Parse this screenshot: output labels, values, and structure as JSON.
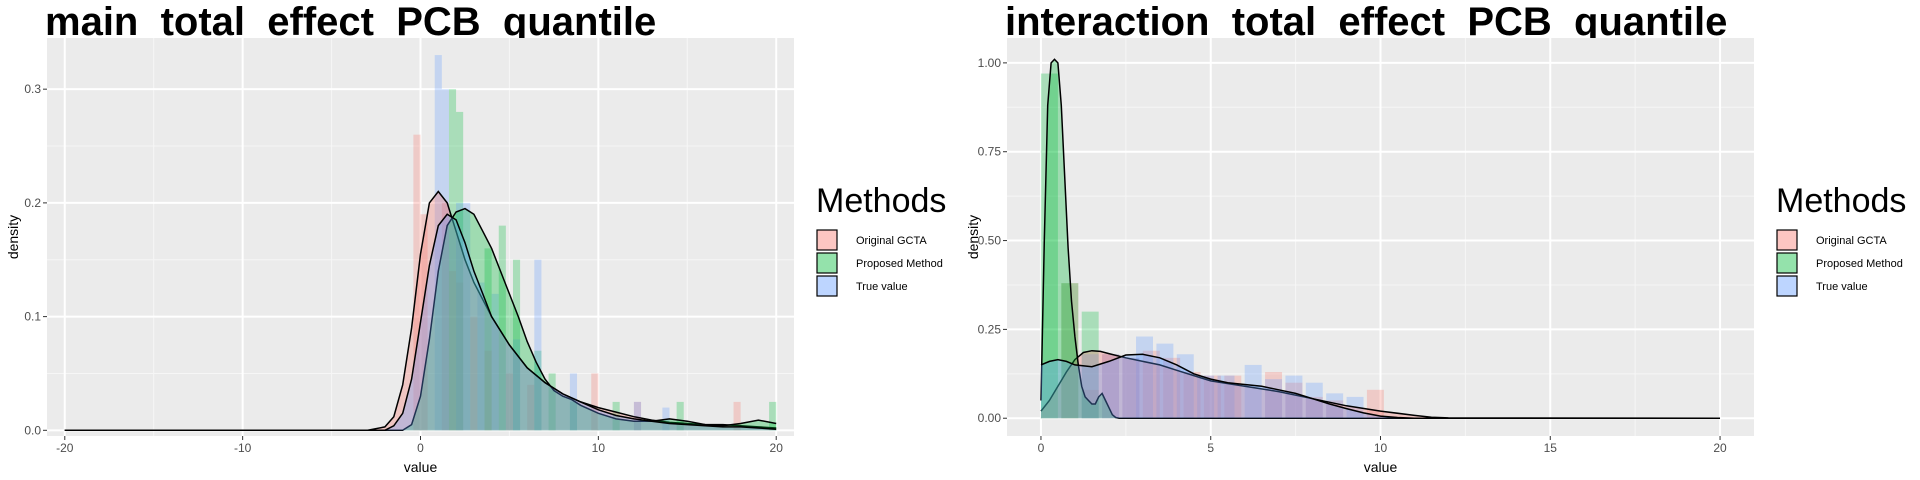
{
  "chart_data": [
    {
      "type": "histogram-density",
      "title": "main_total_effect_PCB_quantile",
      "xlabel": "value",
      "ylabel": "density",
      "xlim": [
        -21,
        21
      ],
      "ylim": [
        -0.005,
        0.345
      ],
      "xticks": [
        -20,
        -10,
        0,
        10,
        20
      ],
      "xtick_labels": [
        "-20",
        "-10",
        "0",
        "10",
        "20"
      ],
      "yticks": [
        0,
        0.1,
        0.2,
        0.3
      ],
      "ytick_labels": [
        "0.0",
        "0.1",
        "0.2",
        "0.3"
      ],
      "grid": true,
      "legend": {
        "title": "Methods",
        "position": "right"
      },
      "series": [
        {
          "name": "Original GCTA",
          "color": "#F8766D",
          "bins": [
            [
              -0.4,
              0.26
            ],
            [
              0.0,
              0.19
            ],
            [
              1.2,
              0.2
            ],
            [
              1.6,
              0.14
            ],
            [
              2.0,
              0.13
            ],
            [
              2.8,
              0.1
            ],
            [
              3.6,
              0.07
            ],
            [
              4.8,
              0.05
            ],
            [
              6.0,
              0.04
            ],
            [
              9.6,
              0.05
            ],
            [
              12.0,
              0.025
            ],
            [
              17.6,
              0.025
            ]
          ],
          "binwidth": 0.4,
          "curve": [
            [
              -20,
              0
            ],
            [
              -3,
              0
            ],
            [
              -2,
              0.003
            ],
            [
              -1.5,
              0.012
            ],
            [
              -1,
              0.04
            ],
            [
              -0.5,
              0.09
            ],
            [
              0,
              0.155
            ],
            [
              0.5,
              0.2
            ],
            [
              1,
              0.21
            ],
            [
              1.5,
              0.2
            ],
            [
              2,
              0.175
            ],
            [
              2.5,
              0.15
            ],
            [
              3,
              0.13
            ],
            [
              4,
              0.1
            ],
            [
              5,
              0.075
            ],
            [
              6,
              0.055
            ],
            [
              7,
              0.042
            ],
            [
              8,
              0.032
            ],
            [
              9,
              0.025
            ],
            [
              10,
              0.02
            ],
            [
              11,
              0.016
            ],
            [
              12,
              0.012
            ],
            [
              13,
              0.009
            ],
            [
              14,
              0.007
            ],
            [
              15,
              0.006
            ],
            [
              16,
              0.005
            ],
            [
              17,
              0.005
            ],
            [
              18,
              0.004
            ],
            [
              19,
              0.003
            ],
            [
              20,
              0.002
            ]
          ]
        },
        {
          "name": "Proposed Method",
          "color": "#00BA38",
          "bins": [
            [
              1.6,
              0.3
            ],
            [
              2.0,
              0.28
            ],
            [
              3.6,
              0.16
            ],
            [
              4.4,
              0.18
            ],
            [
              5.2,
              0.15
            ],
            [
              6.4,
              0.07
            ],
            [
              7.2,
              0.05
            ],
            [
              8.4,
              0.025
            ],
            [
              10.8,
              0.025
            ],
            [
              14.4,
              0.025
            ],
            [
              19.6,
              0.025
            ]
          ],
          "binwidth": 0.4,
          "curve": [
            [
              -20,
              0
            ],
            [
              -1,
              0
            ],
            [
              -0.5,
              0.005
            ],
            [
              0,
              0.03
            ],
            [
              0.5,
              0.08
            ],
            [
              1,
              0.14
            ],
            [
              1.5,
              0.18
            ],
            [
              2,
              0.192
            ],
            [
              2.5,
              0.195
            ],
            [
              3,
              0.19
            ],
            [
              3.5,
              0.175
            ],
            [
              4,
              0.16
            ],
            [
              4.5,
              0.14
            ],
            [
              5,
              0.12
            ],
            [
              5.5,
              0.1
            ],
            [
              6,
              0.078
            ],
            [
              6.5,
              0.06
            ],
            [
              7,
              0.045
            ],
            [
              7.5,
              0.035
            ],
            [
              8,
              0.03
            ],
            [
              8.5,
              0.027
            ],
            [
              9,
              0.022
            ],
            [
              10,
              0.015
            ],
            [
              11,
              0.01
            ],
            [
              12,
              0.008
            ],
            [
              13,
              0.008
            ],
            [
              14,
              0.01
            ],
            [
              15,
              0.008
            ],
            [
              16,
              0.005
            ],
            [
              17,
              0.004
            ],
            [
              18,
              0.006
            ],
            [
              19,
              0.009
            ],
            [
              20,
              0.006
            ]
          ]
        },
        {
          "name": "True value",
          "color": "#619CFF",
          "bins": [
            [
              0.8,
              0.33
            ],
            [
              1.2,
              0.3
            ],
            [
              2.0,
              0.2
            ],
            [
              2.4,
              0.2
            ],
            [
              3.2,
              0.13
            ],
            [
              4.0,
              0.12
            ],
            [
              5.2,
              0.08
            ],
            [
              6.4,
              0.15
            ],
            [
              8.4,
              0.05
            ],
            [
              12.0,
              0.025
            ],
            [
              13.6,
              0.02
            ]
          ],
          "binwidth": 0.4,
          "curve": [
            [
              -20,
              0
            ],
            [
              -2,
              0
            ],
            [
              -1.5,
              0.004
            ],
            [
              -1,
              0.015
            ],
            [
              -0.5,
              0.045
            ],
            [
              0,
              0.095
            ],
            [
              0.5,
              0.145
            ],
            [
              1,
              0.18
            ],
            [
              1.5,
              0.19
            ],
            [
              2,
              0.185
            ],
            [
              2.5,
              0.165
            ],
            [
              3,
              0.14
            ],
            [
              3.5,
              0.12
            ],
            [
              4,
              0.1
            ],
            [
              5,
              0.075
            ],
            [
              6,
              0.055
            ],
            [
              7,
              0.042
            ],
            [
              8,
              0.032
            ],
            [
              9,
              0.025
            ],
            [
              10,
              0.018
            ],
            [
              11,
              0.013
            ],
            [
              12,
              0.01
            ],
            [
              13,
              0.008
            ],
            [
              14,
              0.006
            ],
            [
              15,
              0.005
            ],
            [
              16,
              0.004
            ],
            [
              17,
              0.003
            ],
            [
              18,
              0.003
            ],
            [
              19,
              0.002
            ],
            [
              20,
              0.001
            ]
          ]
        }
      ]
    },
    {
      "type": "histogram-density",
      "title": "interaction_total_effect_PCB_quantile",
      "xlabel": "value",
      "ylabel": "density",
      "xlim": [
        -1,
        21
      ],
      "ylim": [
        -0.05,
        1.07
      ],
      "xticks": [
        0,
        5,
        10,
        15,
        20
      ],
      "xtick_labels": [
        "0",
        "5",
        "10",
        "15",
        "20"
      ],
      "yticks": [
        0,
        0.25,
        0.5,
        0.75,
        1.0
      ],
      "ytick_labels": [
        "0.00",
        "0.25",
        "0.50",
        "0.75",
        "1.00"
      ],
      "grid": true,
      "legend": {
        "title": "Methods",
        "position": "right"
      },
      "series": [
        {
          "name": "Original GCTA",
          "color": "#F8766D",
          "bins": [
            [
              0.6,
              0.38
            ],
            [
              1.2,
              0.08
            ],
            [
              1.8,
              0.18
            ],
            [
              2.4,
              0.17
            ],
            [
              3.0,
              0.19
            ],
            [
              3.6,
              0.17
            ],
            [
              4.2,
              0.13
            ],
            [
              4.8,
              0.12
            ],
            [
              5.4,
              0.12
            ],
            [
              6.6,
              0.13
            ],
            [
              7.2,
              0.1
            ],
            [
              7.8,
              0.06
            ],
            [
              8.4,
              0.05
            ],
            [
              9.6,
              0.08
            ]
          ],
          "binwidth": 0.5,
          "curve": [
            [
              0,
              0.02
            ],
            [
              0.25,
              0.05
            ],
            [
              0.5,
              0.09
            ],
            [
              0.75,
              0.13
            ],
            [
              1,
              0.165
            ],
            [
              1.25,
              0.185
            ],
            [
              1.5,
              0.19
            ],
            [
              1.75,
              0.188
            ],
            [
              2,
              0.182
            ],
            [
              2.5,
              0.17
            ],
            [
              3,
              0.16
            ],
            [
              3.5,
              0.15
            ],
            [
              4,
              0.135
            ],
            [
              4.5,
              0.12
            ],
            [
              5,
              0.105
            ],
            [
              6,
              0.09
            ],
            [
              7,
              0.075
            ],
            [
              8,
              0.055
            ],
            [
              9,
              0.035
            ],
            [
              10,
              0.02
            ],
            [
              11,
              0.008
            ],
            [
              11.5,
              0.003
            ],
            [
              12,
              0.001
            ],
            [
              20,
              0
            ]
          ]
        },
        {
          "name": "Proposed Method",
          "color": "#00BA38",
          "bins": [
            [
              0.0,
              0.97
            ],
            [
              0.6,
              0.38
            ],
            [
              1.2,
              0.3
            ]
          ],
          "binwidth": 0.5,
          "curve": [
            [
              0,
              0.05
            ],
            [
              0.1,
              0.5
            ],
            [
              0.2,
              0.88
            ],
            [
              0.3,
              1.0
            ],
            [
              0.4,
              1.01
            ],
            [
              0.5,
              1.0
            ],
            [
              0.6,
              0.88
            ],
            [
              0.7,
              0.68
            ],
            [
              0.8,
              0.48
            ],
            [
              0.9,
              0.33
            ],
            [
              1,
              0.23
            ],
            [
              1.1,
              0.15
            ],
            [
              1.2,
              0.09
            ],
            [
              1.3,
              0.06
            ],
            [
              1.4,
              0.05
            ],
            [
              1.5,
              0.04
            ],
            [
              1.6,
              0.04
            ],
            [
              1.7,
              0.06
            ],
            [
              1.8,
              0.07
            ],
            [
              1.9,
              0.05
            ],
            [
              2,
              0.03
            ],
            [
              2.1,
              0.01
            ],
            [
              2.2,
              0.002
            ],
            [
              2.3,
              0
            ],
            [
              20,
              0
            ]
          ]
        },
        {
          "name": "True value",
          "color": "#619CFF",
          "bins": [
            [
              1.2,
              0.18
            ],
            [
              1.8,
              0.18
            ],
            [
              2.4,
              0.17
            ],
            [
              2.8,
              0.23
            ],
            [
              3.4,
              0.21
            ],
            [
              4.0,
              0.18
            ],
            [
              4.6,
              0.12
            ],
            [
              5.2,
              0.12
            ],
            [
              6.0,
              0.15
            ],
            [
              6.6,
              0.11
            ],
            [
              7.2,
              0.12
            ],
            [
              7.8,
              0.1
            ],
            [
              8.4,
              0.07
            ],
            [
              9.0,
              0.06
            ]
          ],
          "binwidth": 0.5,
          "curve": [
            [
              0,
              0.15
            ],
            [
              0.25,
              0.16
            ],
            [
              0.5,
              0.165
            ],
            [
              0.75,
              0.16
            ],
            [
              1,
              0.15
            ],
            [
              1.5,
              0.145
            ],
            [
              2,
              0.16
            ],
            [
              2.5,
              0.178
            ],
            [
              3,
              0.18
            ],
            [
              3.5,
              0.17
            ],
            [
              4,
              0.15
            ],
            [
              4.5,
              0.125
            ],
            [
              5,
              0.11
            ],
            [
              5.5,
              0.1
            ],
            [
              6,
              0.095
            ],
            [
              6.5,
              0.09
            ],
            [
              7,
              0.08
            ],
            [
              7.5,
              0.07
            ],
            [
              8,
              0.055
            ],
            [
              8.5,
              0.04
            ],
            [
              9,
              0.027
            ],
            [
              9.5,
              0.015
            ],
            [
              10,
              0.006
            ],
            [
              10.5,
              0.002
            ],
            [
              11,
              0
            ],
            [
              20,
              0
            ]
          ]
        }
      ]
    }
  ]
}
